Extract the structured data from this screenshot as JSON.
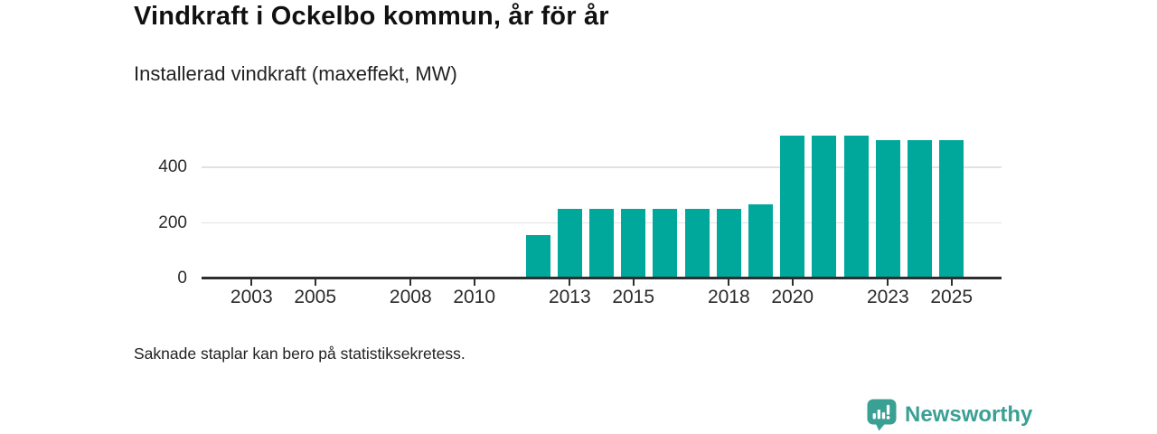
{
  "header": {
    "title": "Vindkraft i Ockelbo kommun, år för år",
    "subtitle": "Installerad vindkraft (maxeffekt, MW)"
  },
  "footer": {
    "note": "Saknade staplar kan bero på statistiksekretess.",
    "brand_name": "Newsworthy"
  },
  "colors": {
    "bar": "#00a79b",
    "brand": "#3ba094",
    "axis": "#2e2e2e",
    "grid": "#e2e2e2"
  },
  "chart_data": {
    "type": "bar",
    "title": "Vindkraft i Ockelbo kommun, år för år",
    "subtitle": "Installerad vindkraft (maxeffekt, MW)",
    "note": "Saknade staplar kan bero på statistiksekretess.",
    "x": [
      2012,
      2013,
      2014,
      2015,
      2016,
      2017,
      2018,
      2019,
      2020,
      2021,
      2022,
      2023,
      2024,
      2025
    ],
    "values": [
      155,
      250,
      250,
      250,
      250,
      250,
      250,
      268,
      516,
      516,
      516,
      500,
      500,
      500
    ],
    "series_name": "Installerad vindkraft (maxeffekt, MW)",
    "xticks": [
      2003,
      2005,
      2008,
      2010,
      2013,
      2015,
      2018,
      2020,
      2023,
      2025
    ],
    "yticks": [
      0,
      200,
      400
    ],
    "xlim": [
      2001.43,
      2026.57
    ],
    "ylim": [
      0,
      580
    ],
    "grid": "horizontal-only",
    "legend": "none",
    "bar_color": "#00a79b"
  }
}
